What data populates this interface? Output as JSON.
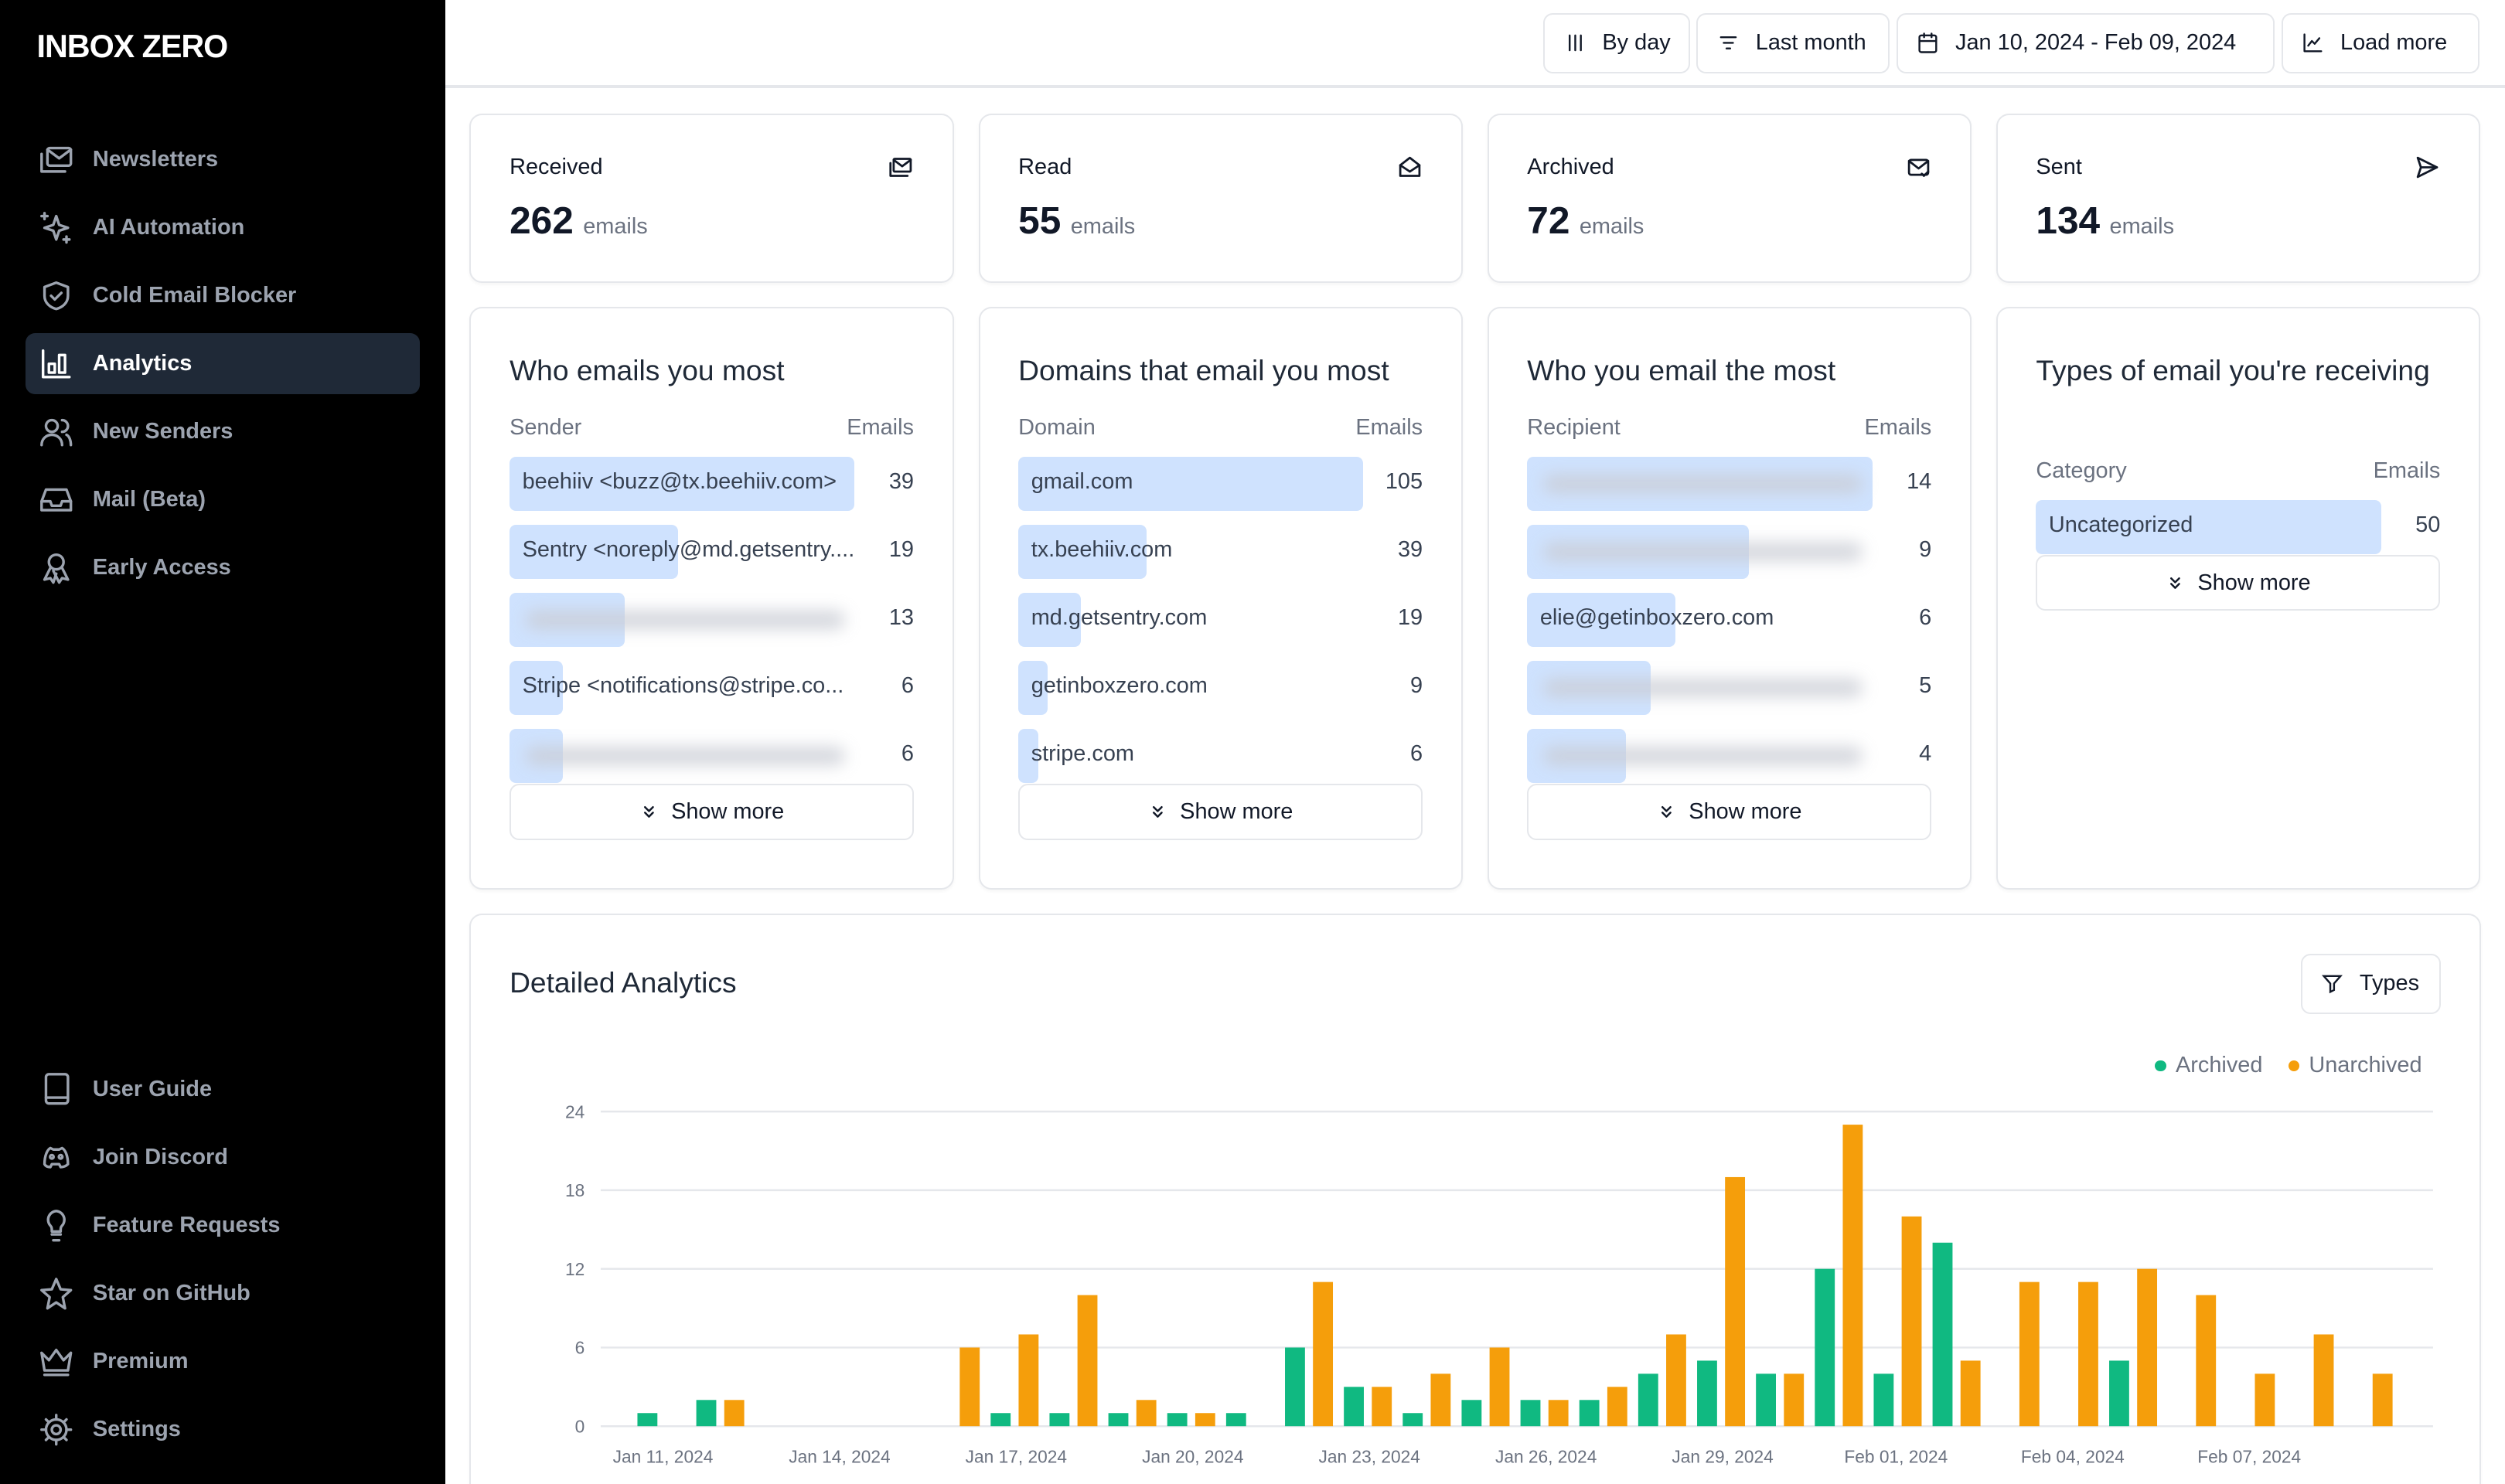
{
  "sidebar": {
    "logo": "INBOX ZERO",
    "nav": [
      {
        "label": "Newsletters",
        "icon": "newsletter-icon",
        "active": false
      },
      {
        "label": "AI Automation",
        "icon": "sparkles-icon",
        "active": false
      },
      {
        "label": "Cold Email Blocker",
        "icon": "shield-check-icon",
        "active": false
      },
      {
        "label": "Analytics",
        "icon": "bar-chart-icon",
        "active": true
      },
      {
        "label": "New Senders",
        "icon": "users-icon",
        "active": false
      },
      {
        "label": "Mail (Beta)",
        "icon": "inbox-icon",
        "active": false
      },
      {
        "label": "Early Access",
        "icon": "ribbon-icon",
        "active": false
      }
    ],
    "footer": [
      {
        "label": "User Guide",
        "icon": "book-icon"
      },
      {
        "label": "Join Discord",
        "icon": "discord-icon"
      },
      {
        "label": "Feature Requests",
        "icon": "lightbulb-icon"
      },
      {
        "label": "Star on GitHub",
        "icon": "star-icon"
      },
      {
        "label": "Premium",
        "icon": "crown-icon"
      },
      {
        "label": "Settings",
        "icon": "gear-icon"
      }
    ]
  },
  "header": {
    "buttons": [
      {
        "label": "By day",
        "icon": "bars-icon"
      },
      {
        "label": "Last month",
        "icon": "list-filter-icon"
      },
      {
        "label": "Jan 10, 2024 - Feb 09, 2024",
        "icon": "calendar-icon"
      },
      {
        "label": "Load more",
        "icon": "chart-icon"
      }
    ]
  },
  "stats": [
    {
      "label": "Received",
      "value": "262",
      "unit": "emails",
      "icon": "mail-stack-icon"
    },
    {
      "label": "Read",
      "value": "55",
      "unit": "emails",
      "icon": "mail-open-icon"
    },
    {
      "label": "Archived",
      "value": "72",
      "unit": "emails",
      "icon": "mail-check-icon"
    },
    {
      "label": "Sent",
      "value": "134",
      "unit": "emails",
      "icon": "send-icon"
    }
  ],
  "lists": [
    {
      "title": "Who emails you most",
      "col1": "Sender",
      "col2": "Emails",
      "show_more": "Show more",
      "rows": [
        {
          "label": "beehiiv <buzz@tx.beehiiv.com>",
          "value": 39
        },
        {
          "label": "Sentry <noreply@md.getsentry....",
          "value": 19
        },
        {
          "label": "",
          "value": 13,
          "blurred": true
        },
        {
          "label": "Stripe <notifications@stripe.co...",
          "value": 6
        },
        {
          "label": "",
          "value": 6,
          "blurred": true
        }
      ]
    },
    {
      "title": "Domains that email you most",
      "col1": "Domain",
      "col2": "Emails",
      "show_more": "Show more",
      "rows": [
        {
          "label": "gmail.com",
          "value": 105
        },
        {
          "label": "tx.beehiiv.com",
          "value": 39
        },
        {
          "label": "md.getsentry.com",
          "value": 19
        },
        {
          "label": "getinboxzero.com",
          "value": 9
        },
        {
          "label": "stripe.com",
          "value": 6
        }
      ]
    },
    {
      "title": "Who you email the most",
      "col1": "Recipient",
      "col2": "Emails",
      "show_more": "Show more",
      "rows": [
        {
          "label": "",
          "value": 14,
          "blurred": true
        },
        {
          "label": "",
          "value": 9,
          "blurred": true
        },
        {
          "label": "elie@getinboxzero.com",
          "value": 6
        },
        {
          "label": "",
          "value": 5,
          "blurred": true
        },
        {
          "label": "",
          "value": 4,
          "blurred": true
        }
      ]
    },
    {
      "title": "Types of email you're receiving",
      "col1": "Category",
      "col2": "Emails",
      "show_more": "Show more",
      "rows": [
        {
          "label": "Uncategorized",
          "value": 50
        }
      ]
    }
  ],
  "detailed": {
    "title": "Detailed Analytics",
    "types_button": "Types"
  },
  "chart_data": {
    "type": "bar",
    "title": "",
    "xlabel": "",
    "ylabel": "",
    "ylim": [
      0,
      24
    ],
    "yticks": [
      "0",
      "6",
      "12",
      "18",
      "24"
    ],
    "grid": true,
    "legend": "top-right",
    "categories": [
      "Jan 11, 2024",
      "Jan 12, 2024",
      "Jan 13, 2024",
      "Jan 14, 2024",
      "Jan 15, 2024",
      "Jan 16, 2024",
      "Jan 17, 2024",
      "Jan 18, 2024",
      "Jan 19, 2024",
      "Jan 20, 2024",
      "Jan 21, 2024",
      "Jan 22, 2024",
      "Jan 23, 2024",
      "Jan 24, 2024",
      "Jan 25, 2024",
      "Jan 26, 2024",
      "Jan 27, 2024",
      "Jan 28, 2024",
      "Jan 29, 2024",
      "Jan 30, 2024",
      "Jan 31, 2024",
      "Feb 01, 2024",
      "Feb 02, 2024",
      "Feb 03, 2024",
      "Feb 04, 2024",
      "Feb 05, 2024",
      "Feb 06, 2024",
      "Feb 07, 2024",
      "Feb 08, 2024",
      "Feb 09, 2024"
    ],
    "xtick_labels": [
      "Jan 11, 2024",
      "Jan 14, 2024",
      "Jan 17, 2024",
      "Jan 20, 2024",
      "Jan 23, 2024",
      "Jan 26, 2024",
      "Jan 29, 2024",
      "Feb 01, 2024",
      "Feb 04, 2024",
      "Feb 07, 2024"
    ],
    "series": [
      {
        "name": "Archived",
        "color": "#10b981",
        "values": [
          1,
          2,
          0,
          0,
          0,
          0,
          1,
          1,
          1,
          1,
          1,
          6,
          3,
          1,
          2,
          2,
          2,
          4,
          5,
          4,
          12,
          4,
          14,
          0,
          0,
          5,
          0,
          0,
          0,
          0
        ]
      },
      {
        "name": "Unarchived",
        "color": "#f59e0b",
        "values": [
          0,
          2,
          0,
          0,
          0,
          6,
          7,
          10,
          2,
          1,
          0,
          11,
          3,
          4,
          6,
          2,
          3,
          7,
          19,
          4,
          23,
          16,
          5,
          11,
          11,
          12,
          10,
          4,
          7,
          4
        ]
      }
    ]
  }
}
